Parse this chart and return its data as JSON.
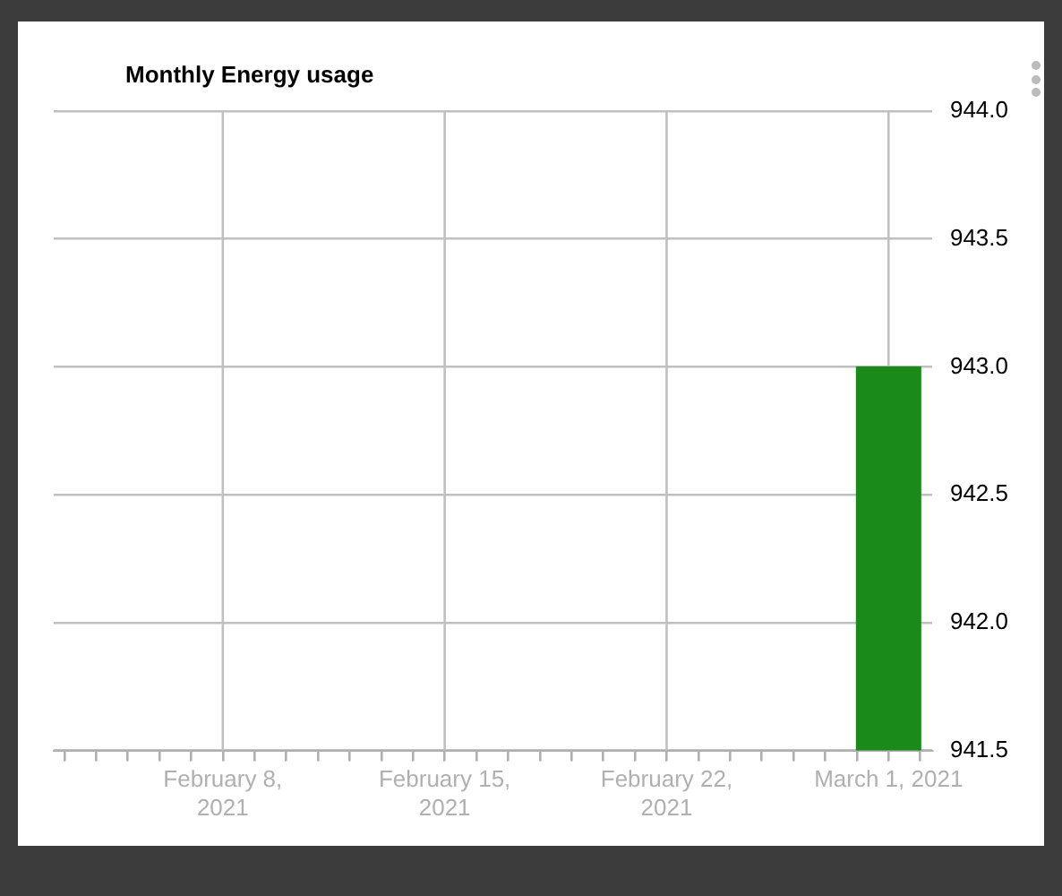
{
  "chart_data": {
    "type": "bar",
    "title": "Monthly Energy usage",
    "x": [
      "2021-03-01"
    ],
    "values": [
      943
    ],
    "color": "#1a8a1a",
    "xlim": [
      "2021-02-02T16:00",
      "2021-03-02T09:00"
    ],
    "xticks": [
      {
        "value": "2021-02-03",
        "label": null
      },
      {
        "value": "2021-02-04",
        "label": null
      },
      {
        "value": "2021-02-05",
        "label": null
      },
      {
        "value": "2021-02-06",
        "label": null
      },
      {
        "value": "2021-02-07",
        "label": null
      },
      {
        "value": "2021-02-08",
        "label": "February 8, 2021"
      },
      {
        "value": "2021-02-09",
        "label": null
      },
      {
        "value": "2021-02-10",
        "label": null
      },
      {
        "value": "2021-02-11",
        "label": null
      },
      {
        "value": "2021-02-12",
        "label": null
      },
      {
        "value": "2021-02-13",
        "label": null
      },
      {
        "value": "2021-02-14",
        "label": null
      },
      {
        "value": "2021-02-15",
        "label": "February 15, 2021"
      },
      {
        "value": "2021-02-16",
        "label": null
      },
      {
        "value": "2021-02-17",
        "label": null
      },
      {
        "value": "2021-02-18",
        "label": null
      },
      {
        "value": "2021-02-19",
        "label": null
      },
      {
        "value": "2021-02-20",
        "label": null
      },
      {
        "value": "2021-02-21",
        "label": null
      },
      {
        "value": "2021-02-22",
        "label": "February 22, 2021"
      },
      {
        "value": "2021-02-23",
        "label": null
      },
      {
        "value": "2021-02-24",
        "label": null
      },
      {
        "value": "2021-02-25",
        "label": null
      },
      {
        "value": "2021-02-26",
        "label": null
      },
      {
        "value": "2021-02-27",
        "label": null
      },
      {
        "value": "2021-02-28",
        "label": null
      },
      {
        "value": "2021-03-01",
        "label": "March 1, 2021"
      },
      {
        "value": "2021-03-02",
        "label": null
      }
    ],
    "ylim": [
      941.5,
      944
    ],
    "yticks": [
      {
        "value": 941.5,
        "label": "941.5"
      },
      {
        "value": 942,
        "label": "942.0"
      },
      {
        "value": 942.5,
        "label": "942.5"
      },
      {
        "value": 943,
        "label": "943.0"
      },
      {
        "value": 943.5,
        "label": "943.5"
      },
      {
        "value": 944,
        "label": "944.0"
      }
    ],
    "grid": true
  }
}
